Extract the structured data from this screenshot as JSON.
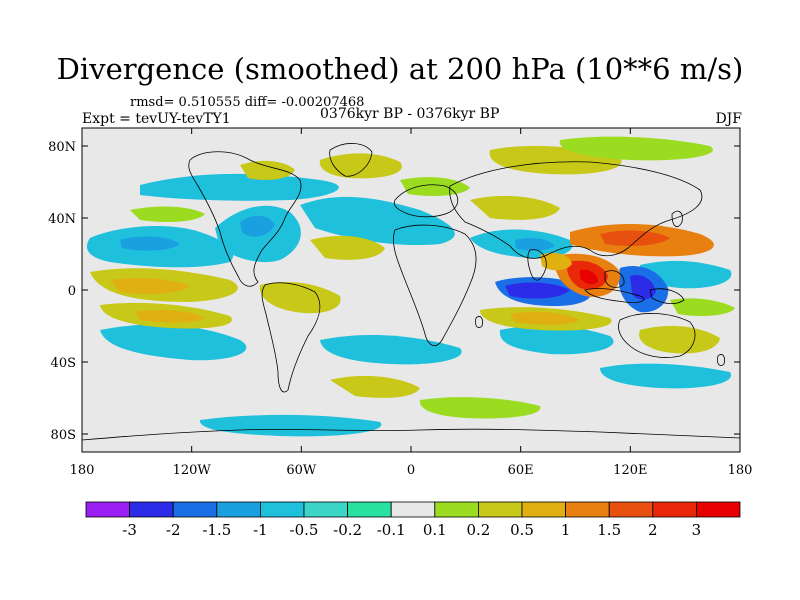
{
  "header": {
    "title": "Divergence (smoothed) at 200 hPa (10**6 m/s)",
    "stats": "rmsd= 0.510555 diff= -0.00207468",
    "experiment": "Expt = tevUY-tevTY1",
    "period": "0376kyr BP - 0376kyr BP",
    "season": "DJF"
  },
  "map": {
    "lon_ticks": [
      "180",
      "120W",
      "60W",
      "0",
      "60E",
      "120E",
      "180"
    ],
    "lat_ticks": [
      "80N",
      "40N",
      "0",
      "40S",
      "80S"
    ],
    "lon_tick_values": [
      -180,
      -120,
      -60,
      0,
      60,
      120,
      180
    ],
    "lat_tick_values": [
      80,
      40,
      0,
      -40,
      -80
    ],
    "lon_range": [
      -180,
      180
    ],
    "lat_range": [
      -90,
      90
    ]
  },
  "colorbar": {
    "labels": [
      "-3",
      "-2",
      "-1.5",
      "-1",
      "-0.5",
      "-0.2",
      "-0.1",
      "0.1",
      "0.2",
      "0.5",
      "1",
      "1.5",
      "2",
      "3"
    ],
    "colors": [
      "#9b1ff2",
      "#2b2be8",
      "#1a6fe6",
      "#1aa0e0",
      "#1fc0dc",
      "#3cd6c8",
      "#28e0a0",
      "#e8e8e8",
      "#9cdc20",
      "#c8c818",
      "#e0b010",
      "#e88010",
      "#e85010",
      "#e82808",
      "#e80000"
    ]
  }
}
